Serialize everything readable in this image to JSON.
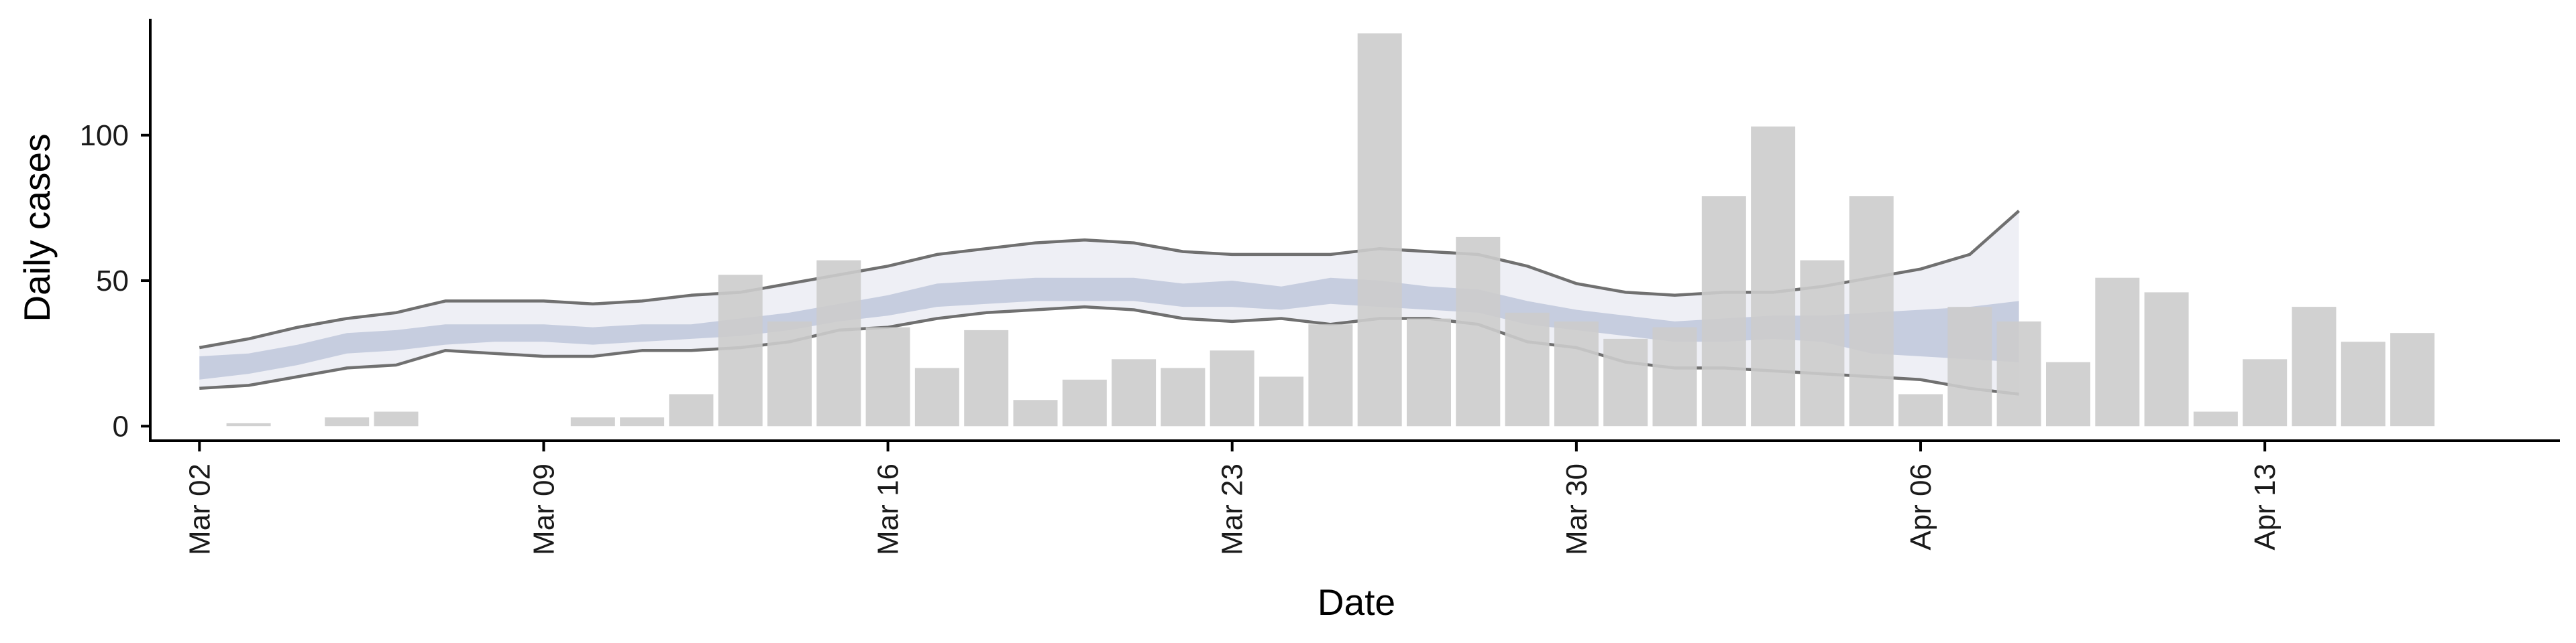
{
  "chart_data": {
    "type": "bar",
    "xlabel": "Date",
    "ylabel": "Daily cases",
    "x_start": "2020-03-01",
    "xlim": [
      "2020-03-01",
      "2020-04-19"
    ],
    "ylim": [
      -5,
      140
    ],
    "x_ticks": [
      {
        "date": "2020-03-02",
        "label": "Mar 02"
      },
      {
        "date": "2020-03-09",
        "label": "Mar 09"
      },
      {
        "date": "2020-03-16",
        "label": "Mar 16"
      },
      {
        "date": "2020-03-23",
        "label": "Mar 23"
      },
      {
        "date": "2020-03-30",
        "label": "Mar 30"
      },
      {
        "date": "2020-04-06",
        "label": "Apr 06"
      },
      {
        "date": "2020-04-13",
        "label": "Apr 13"
      }
    ],
    "y_ticks": [
      0,
      50,
      100
    ],
    "bars": {
      "color": "#cccccc",
      "x": [
        "2020-03-02",
        "2020-03-03",
        "2020-03-04",
        "2020-03-05",
        "2020-03-06",
        "2020-03-07",
        "2020-03-08",
        "2020-03-09",
        "2020-03-10",
        "2020-03-11",
        "2020-03-12",
        "2020-03-13",
        "2020-03-14",
        "2020-03-15",
        "2020-03-16",
        "2020-03-17",
        "2020-03-18",
        "2020-03-19",
        "2020-03-20",
        "2020-03-21",
        "2020-03-22",
        "2020-03-23",
        "2020-03-24",
        "2020-03-25",
        "2020-03-26",
        "2020-03-27",
        "2020-03-28",
        "2020-03-29",
        "2020-03-30",
        "2020-03-31",
        "2020-04-01",
        "2020-04-02",
        "2020-04-03",
        "2020-04-04",
        "2020-04-05",
        "2020-04-06",
        "2020-04-07",
        "2020-04-08",
        "2020-04-09",
        "2020-04-10",
        "2020-04-11",
        "2020-04-12",
        "2020-04-13",
        "2020-04-14",
        "2020-04-15",
        "2020-04-16",
        "2020-04-17"
      ],
      "values": [
        0,
        1,
        0,
        3,
        5,
        0,
        0,
        0,
        3,
        3,
        11,
        52,
        36,
        57,
        34,
        20,
        33,
        9,
        16,
        23,
        20,
        26,
        17,
        35,
        135,
        37,
        65,
        39,
        36,
        30,
        34,
        79,
        103,
        57,
        79,
        11,
        41,
        36,
        22,
        51,
        46,
        5,
        23,
        41,
        29,
        32,
        0
      ]
    },
    "outer_band": {
      "color": "#e8eaf2",
      "x": [
        "2020-03-02",
        "2020-03-03",
        "2020-03-04",
        "2020-03-05",
        "2020-03-06",
        "2020-03-07",
        "2020-03-08",
        "2020-03-09",
        "2020-03-10",
        "2020-03-11",
        "2020-03-12",
        "2020-03-13",
        "2020-03-14",
        "2020-03-15",
        "2020-03-16",
        "2020-03-17",
        "2020-03-18",
        "2020-03-19",
        "2020-03-20",
        "2020-03-21",
        "2020-03-22",
        "2020-03-23",
        "2020-03-24",
        "2020-03-25",
        "2020-03-26",
        "2020-03-27",
        "2020-03-28",
        "2020-03-29",
        "2020-03-30",
        "2020-03-31",
        "2020-04-01",
        "2020-04-02",
        "2020-04-03",
        "2020-04-04",
        "2020-04-05",
        "2020-04-06",
        "2020-04-07",
        "2020-04-08"
      ],
      "upper": [
        27,
        30,
        34,
        37,
        39,
        43,
        43,
        43,
        42,
        43,
        45,
        46,
        49,
        52,
        55,
        59,
        61,
        63,
        64,
        63,
        60,
        59,
        59,
        59,
        61,
        60,
        59,
        55,
        49,
        46,
        45,
        46,
        46,
        48,
        51,
        54,
        59,
        74
      ],
      "lower": [
        13,
        14,
        17,
        20,
        21,
        26,
        25,
        24,
        24,
        26,
        26,
        27,
        29,
        33,
        34,
        37,
        39,
        40,
        41,
        40,
        37,
        36,
        37,
        35,
        37,
        37,
        35,
        29,
        27,
        22,
        20,
        20,
        19,
        18,
        17,
        16,
        13,
        11
      ]
    },
    "inner_band": {
      "color": "#bcc4d9",
      "x": [
        "2020-03-02",
        "2020-03-03",
        "2020-03-04",
        "2020-03-05",
        "2020-03-06",
        "2020-03-07",
        "2020-03-08",
        "2020-03-09",
        "2020-03-10",
        "2020-03-11",
        "2020-03-12",
        "2020-03-13",
        "2020-03-14",
        "2020-03-15",
        "2020-03-16",
        "2020-03-17",
        "2020-03-18",
        "2020-03-19",
        "2020-03-20",
        "2020-03-21",
        "2020-03-22",
        "2020-03-23",
        "2020-03-24",
        "2020-03-25",
        "2020-03-26",
        "2020-03-27",
        "2020-03-28",
        "2020-03-29",
        "2020-03-30",
        "2020-03-31",
        "2020-04-01",
        "2020-04-02",
        "2020-04-03",
        "2020-04-04",
        "2020-04-05",
        "2020-04-06",
        "2020-04-07",
        "2020-04-08"
      ],
      "upper": [
        24,
        25,
        28,
        32,
        33,
        35,
        35,
        35,
        34,
        35,
        35,
        37,
        39,
        42,
        45,
        49,
        50,
        51,
        51,
        51,
        49,
        50,
        48,
        51,
        50,
        48,
        47,
        43,
        40,
        38,
        36,
        37,
        38,
        38,
        39,
        40,
        41,
        43
      ],
      "lower": [
        16,
        18,
        21,
        25,
        26,
        28,
        29,
        29,
        28,
        29,
        30,
        31,
        33,
        36,
        38,
        41,
        42,
        43,
        43,
        43,
        41,
        41,
        40,
        42,
        41,
        40,
        39,
        35,
        33,
        31,
        29,
        29,
        30,
        29,
        25,
        24,
        23,
        22
      ]
    },
    "line_color": "#707070",
    "colors": {
      "axis": "#000000",
      "tick_label": "#1a1a1a"
    }
  }
}
